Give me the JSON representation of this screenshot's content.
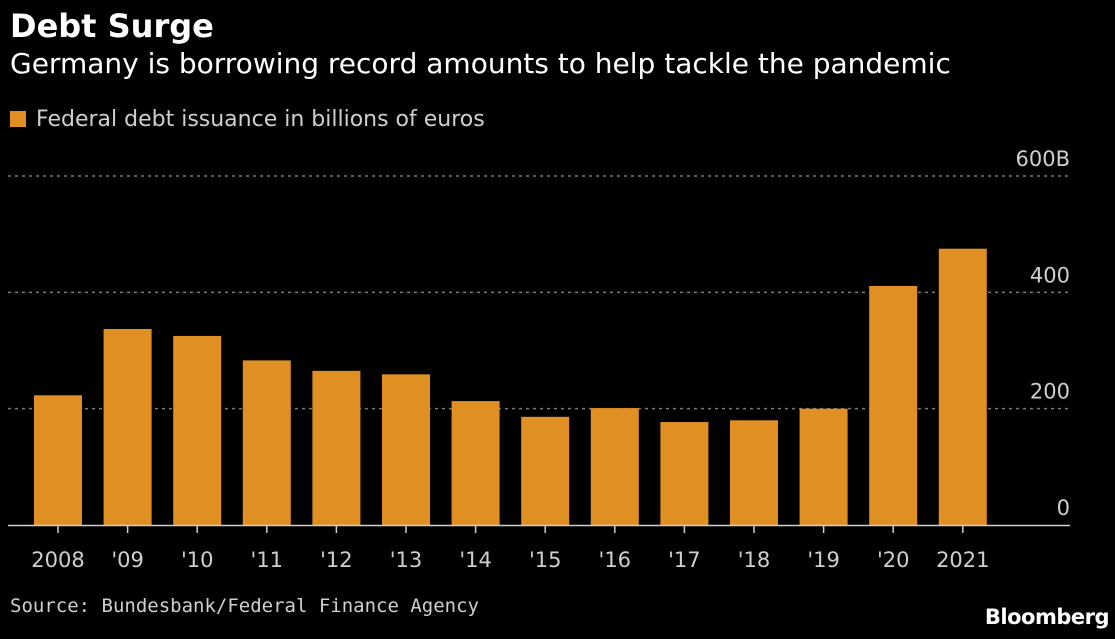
{
  "header": {
    "title": "Debt Surge",
    "subtitle": "Germany is borrowing record amounts to help tackle the pandemic"
  },
  "legend": {
    "label": "Federal debt issuance in billions of euros",
    "swatch_icon": "square-swatch-icon"
  },
  "colors": {
    "bar": "#e08f22",
    "background": "#000000",
    "grid": "#7a7a7a",
    "text": "#ffffff",
    "muted_text": "#cfcfcf"
  },
  "footer": {
    "source": "Source: Bundesbank/Federal Finance Agency",
    "brand": "Bloomberg"
  },
  "chart_data": {
    "type": "bar",
    "title": "Debt Surge",
    "subtitle": "Germany is borrowing record amounts to help tackle the pandemic",
    "categories": [
      "2008",
      "'09",
      "'10",
      "'11",
      "'12",
      "'13",
      "'14",
      "'15",
      "'16",
      "'17",
      "'18",
      "'19",
      "'20",
      "2021"
    ],
    "series": [
      {
        "name": "Federal debt issuance in billions of euros",
        "values": [
          223,
          337,
          325,
          283,
          265,
          259,
          213,
          186,
          201,
          177,
          180,
          200,
          411,
          475
        ]
      }
    ],
    "yticks": [
      {
        "value": 0,
        "label": "0"
      },
      {
        "value": 200,
        "label": "200"
      },
      {
        "value": 400,
        "label": "400"
      },
      {
        "value": 600,
        "label": "600B"
      }
    ],
    "ylim": [
      0,
      600
    ],
    "xlabel": "",
    "ylabel": "",
    "grid": true,
    "legend_position": "top-left",
    "y_axis_side": "right"
  }
}
